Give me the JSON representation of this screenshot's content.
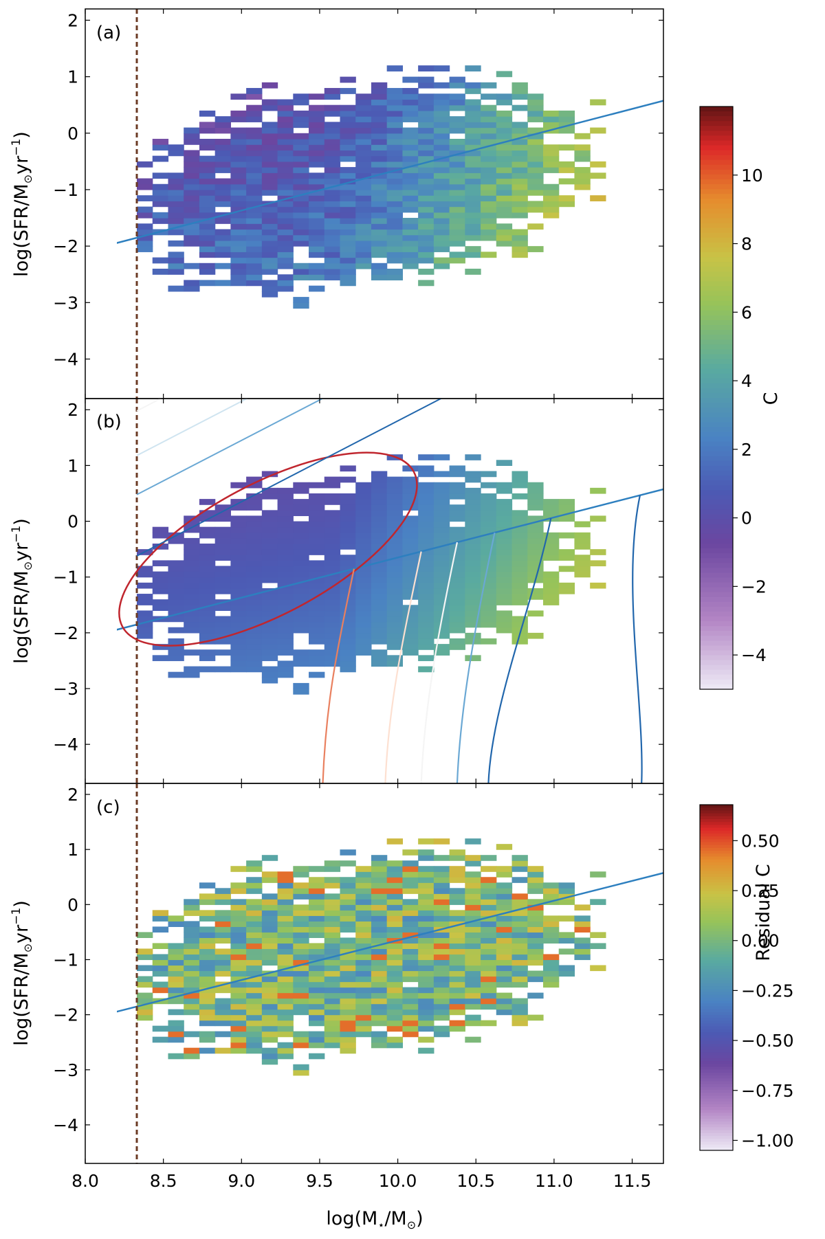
{
  "chart_data": [
    {
      "type": "heatmap",
      "panel_label": "(a)",
      "ylabel": "log(SFR/M⊙yr⁻¹)",
      "ylabel_base": "log(SFR/M",
      "ylabel_sub": "⊙",
      "ylabel_mid": "yr",
      "ylabel_sup": "−1",
      "ylabel_end": ")",
      "xlim": [
        8.0,
        11.7
      ],
      "ylim": [
        -4.7,
        2.2
      ],
      "yticks": [
        -4,
        -3,
        -2,
        -1,
        0,
        1,
        2
      ],
      "ytick_labels": [
        "−4",
        "−3",
        "−2",
        "−1",
        "0",
        "1",
        "2"
      ],
      "colorbar": "C",
      "fit_line": {
        "slope": 0.72,
        "intercept": -7.85,
        "color": "#2d7fbf"
      },
      "mass_limit": {
        "x": 8.33,
        "style": "dashed",
        "color": "#6b3a24"
      }
    },
    {
      "type": "heatmap",
      "panel_label": "(b)",
      "description": "model prediction of C with contours",
      "ylabel_base": "log(SFR/M",
      "ylabel_sub": "⊙",
      "ylabel_mid": "yr",
      "ylabel_sup": "−1",
      "ylabel_end": ")",
      "xlim": [
        8.0,
        11.7
      ],
      "ylim": [
        -4.7,
        2.2
      ],
      "yticks": [
        -4,
        -3,
        -2,
        -1,
        0,
        1,
        2
      ],
      "ytick_labels": [
        "−4",
        "−3",
        "−2",
        "−1",
        "0",
        "1",
        "2"
      ],
      "colorbar": "C",
      "ellipse_contour": {
        "center": [
          9.17,
          -0.5
        ],
        "color": "#c0262e"
      },
      "contour_colors": [
        "#e9805f",
        "#fde0d1",
        "#f5f5f5",
        "#cfe4f0",
        "#6aa8d4",
        "#2166ac"
      ],
      "fit_line": {
        "slope": 0.72,
        "intercept": -7.85,
        "color": "#2d7fbf"
      },
      "mass_limit": {
        "x": 8.33,
        "style": "dashed",
        "color": "#6b3a24"
      }
    },
    {
      "type": "heatmap",
      "panel_label": "(c)",
      "xlabel_base": "log(M",
      "xlabel_sub": "⋆",
      "xlabel_mid": "/M",
      "xlabel_sub2": "⊙",
      "xlabel_end": ")",
      "ylabel_base": "log(SFR/M",
      "ylabel_sub": "⊙",
      "ylabel_mid": "yr",
      "ylabel_sup": "−1",
      "ylabel_end": ")",
      "xlim": [
        8.0,
        11.7
      ],
      "ylim": [
        -4.7,
        2.2
      ],
      "xticks": [
        8.0,
        8.5,
        9.0,
        9.5,
        10.0,
        10.5,
        11.0,
        11.5
      ],
      "xtick_labels": [
        "8.0",
        "8.5",
        "9.0",
        "9.5",
        "10.0",
        "10.5",
        "11.0",
        "11.5"
      ],
      "yticks": [
        -4,
        -3,
        -2,
        -1,
        0,
        1,
        2
      ],
      "ytick_labels": [
        "−4",
        "−3",
        "−2",
        "−1",
        "0",
        "1",
        "2"
      ],
      "colorbar": "Residual C",
      "fit_line": {
        "slope": 0.72,
        "intercept": -7.85,
        "color": "#2d7fbf"
      },
      "mass_limit": {
        "x": 8.33,
        "style": "dashed",
        "color": "#6b3a24"
      }
    }
  ],
  "colorbars": [
    {
      "label": "C",
      "range": [
        -5.0,
        12.0
      ],
      "ticks": [
        -4,
        -2,
        0,
        2,
        4,
        6,
        8,
        10
      ],
      "tick_labels": [
        "−4",
        "−2",
        "0",
        "2",
        "4",
        "6",
        "8",
        "10"
      ]
    },
    {
      "label": "Residual C",
      "range": [
        -1.05,
        0.68
      ],
      "ticks": [
        -1.0,
        -0.75,
        -0.5,
        -0.25,
        0.0,
        0.25,
        0.5
      ],
      "tick_labels": [
        "−1.00",
        "−0.75",
        "−0.50",
        "−0.25",
        "0.00",
        "0.25",
        "0.50"
      ]
    }
  ]
}
